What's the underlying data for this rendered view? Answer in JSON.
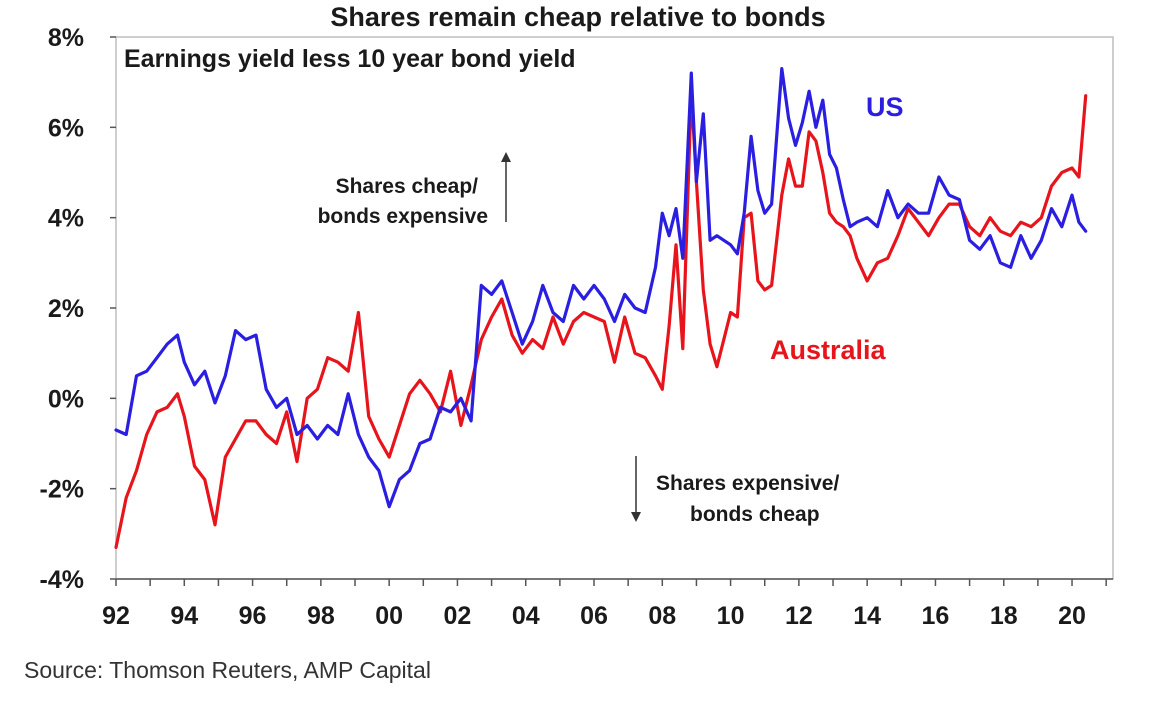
{
  "chart_data": {
    "type": "line",
    "title": "Shares remain cheap relative to bonds",
    "subtitle": "Earnings yield less 10 year bond yield",
    "source": "Source: Thomson Reuters, AMP Capital",
    "ylim": [
      -4,
      8
    ],
    "y_ticks": [
      -4,
      -2,
      0,
      2,
      4,
      6,
      8
    ],
    "y_tick_labels": [
      "-4%",
      "-2%",
      "0%",
      "2%",
      "4%",
      "6%",
      "8%"
    ],
    "xlim": [
      1992,
      2021.2
    ],
    "x_ticks": [
      1992,
      1994,
      1996,
      1998,
      2000,
      2002,
      2004,
      2006,
      2008,
      2010,
      2012,
      2014,
      2016,
      2018,
      2020
    ],
    "x_tick_labels": [
      "92",
      "94",
      "96",
      "98",
      "00",
      "02",
      "04",
      "06",
      "08",
      "10",
      "12",
      "14",
      "16",
      "18",
      "20"
    ],
    "grid": false,
    "annotations": [
      {
        "name": "shares-cheap",
        "lines": [
          "Shares cheap/",
          "bonds expensive"
        ],
        "arrow": "up"
      },
      {
        "name": "shares-expensive",
        "lines": [
          "Shares expensive/",
          "bonds cheap"
        ],
        "arrow": "down"
      }
    ],
    "series": [
      {
        "name": "US",
        "color": "#2a1fe0",
        "x": [
          1992.0,
          1992.3,
          1992.6,
          1992.9,
          1993.2,
          1993.5,
          1993.8,
          1994.0,
          1994.3,
          1994.6,
          1994.9,
          1995.2,
          1995.5,
          1995.8,
          1996.1,
          1996.4,
          1996.7,
          1997.0,
          1997.3,
          1997.6,
          1997.9,
          1998.2,
          1998.5,
          1998.8,
          1999.1,
          1999.4,
          1999.7,
          2000.0,
          2000.3,
          2000.6,
          2000.9,
          2001.2,
          2001.5,
          2001.8,
          2002.1,
          2002.4,
          2002.7,
          2003.0,
          2003.3,
          2003.6,
          2003.9,
          2004.2,
          2004.5,
          2004.8,
          2005.1,
          2005.4,
          2005.7,
          2006.0,
          2006.3,
          2006.6,
          2006.9,
          2007.2,
          2007.5,
          2007.8,
          2008.0,
          2008.2,
          2008.4,
          2008.6,
          2008.85,
          2009.0,
          2009.2,
          2009.4,
          2009.6,
          2009.8,
          2010.0,
          2010.2,
          2010.4,
          2010.6,
          2010.8,
          2011.0,
          2011.2,
          2011.5,
          2011.7,
          2011.9,
          2012.1,
          2012.3,
          2012.5,
          2012.7,
          2012.9,
          2013.1,
          2013.3,
          2013.5,
          2013.7,
          2014.0,
          2014.3,
          2014.6,
          2014.9,
          2015.2,
          2015.5,
          2015.8,
          2016.1,
          2016.4,
          2016.7,
          2017.0,
          2017.3,
          2017.6,
          2017.9,
          2018.2,
          2018.5,
          2018.8,
          2019.1,
          2019.4,
          2019.7,
          2020.0,
          2020.2,
          2020.4
        ],
        "values": [
          -0.7,
          -0.8,
          0.5,
          0.6,
          0.9,
          1.2,
          1.4,
          0.8,
          0.3,
          0.6,
          -0.1,
          0.5,
          1.5,
          1.3,
          1.4,
          0.2,
          -0.2,
          0.0,
          -0.8,
          -0.6,
          -0.9,
          -0.6,
          -0.8,
          0.1,
          -0.8,
          -1.3,
          -1.6,
          -2.4,
          -1.8,
          -1.6,
          -1.0,
          -0.9,
          -0.2,
          -0.3,
          0.0,
          -0.5,
          2.5,
          2.3,
          2.6,
          1.9,
          1.2,
          1.7,
          2.5,
          1.9,
          1.7,
          2.5,
          2.2,
          2.5,
          2.2,
          1.7,
          2.3,
          2.0,
          1.9,
          2.9,
          4.1,
          3.6,
          4.2,
          3.1,
          7.2,
          4.8,
          6.3,
          3.5,
          3.6,
          3.5,
          3.4,
          3.2,
          4.1,
          5.8,
          4.6,
          4.1,
          4.3,
          7.3,
          6.2,
          5.6,
          6.1,
          6.8,
          6.0,
          6.6,
          5.4,
          5.1,
          4.4,
          3.8,
          3.9,
          4.0,
          3.8,
          4.6,
          4.0,
          4.3,
          4.1,
          4.1,
          4.9,
          4.5,
          4.4,
          3.5,
          3.3,
          3.6,
          3.0,
          2.9,
          3.6,
          3.1,
          3.5,
          4.2,
          3.8,
          4.5,
          3.9,
          3.7
        ]
      },
      {
        "name": "Australia",
        "color": "#e8141b",
        "x": [
          1992.0,
          1992.3,
          1992.6,
          1992.9,
          1993.2,
          1993.5,
          1993.8,
          1994.0,
          1994.3,
          1994.6,
          1994.9,
          1995.2,
          1995.5,
          1995.8,
          1996.1,
          1996.4,
          1996.7,
          1997.0,
          1997.3,
          1997.6,
          1997.9,
          1998.2,
          1998.5,
          1998.8,
          1999.1,
          1999.4,
          1999.7,
          2000.0,
          2000.3,
          2000.6,
          2000.9,
          2001.2,
          2001.5,
          2001.8,
          2002.1,
          2002.4,
          2002.7,
          2003.0,
          2003.3,
          2003.6,
          2003.9,
          2004.2,
          2004.5,
          2004.8,
          2005.1,
          2005.4,
          2005.7,
          2006.0,
          2006.3,
          2006.6,
          2006.9,
          2007.2,
          2007.5,
          2007.8,
          2008.0,
          2008.2,
          2008.4,
          2008.6,
          2008.85,
          2009.0,
          2009.2,
          2009.4,
          2009.6,
          2009.8,
          2010.0,
          2010.2,
          2010.4,
          2010.6,
          2010.8,
          2011.0,
          2011.2,
          2011.5,
          2011.7,
          2011.9,
          2012.1,
          2012.3,
          2012.5,
          2012.7,
          2012.9,
          2013.1,
          2013.3,
          2013.5,
          2013.7,
          2014.0,
          2014.3,
          2014.6,
          2014.9,
          2015.2,
          2015.5,
          2015.8,
          2016.1,
          2016.4,
          2016.7,
          2017.0,
          2017.3,
          2017.6,
          2017.9,
          2018.2,
          2018.5,
          2018.8,
          2019.1,
          2019.4,
          2019.7,
          2020.0,
          2020.2,
          2020.4
        ],
        "values": [
          -3.3,
          -2.2,
          -1.6,
          -0.8,
          -0.3,
          -0.2,
          0.1,
          -0.4,
          -1.5,
          -1.8,
          -2.8,
          -1.3,
          -0.9,
          -0.5,
          -0.5,
          -0.8,
          -1.0,
          -0.3,
          -1.4,
          0.0,
          0.2,
          0.9,
          0.8,
          0.6,
          1.9,
          -0.4,
          -0.9,
          -1.3,
          -0.6,
          0.1,
          0.4,
          0.1,
          -0.3,
          0.6,
          -0.6,
          0.3,
          1.3,
          1.8,
          2.2,
          1.4,
          1.0,
          1.3,
          1.1,
          1.8,
          1.2,
          1.7,
          1.9,
          1.8,
          1.7,
          0.8,
          1.8,
          1.0,
          0.9,
          0.5,
          0.2,
          1.6,
          3.4,
          1.1,
          6.8,
          4.8,
          2.4,
          1.2,
          0.7,
          1.3,
          1.9,
          1.8,
          4.0,
          4.1,
          2.6,
          2.4,
          2.5,
          4.5,
          5.3,
          4.7,
          4.7,
          5.9,
          5.7,
          5.0,
          4.1,
          3.9,
          3.8,
          3.6,
          3.1,
          2.6,
          3.0,
          3.1,
          3.6,
          4.2,
          3.9,
          3.6,
          4.0,
          4.3,
          4.3,
          3.8,
          3.6,
          4.0,
          3.7,
          3.6,
          3.9,
          3.8,
          4.0,
          4.7,
          5.0,
          5.1,
          4.9,
          6.7
        ]
      }
    ]
  }
}
